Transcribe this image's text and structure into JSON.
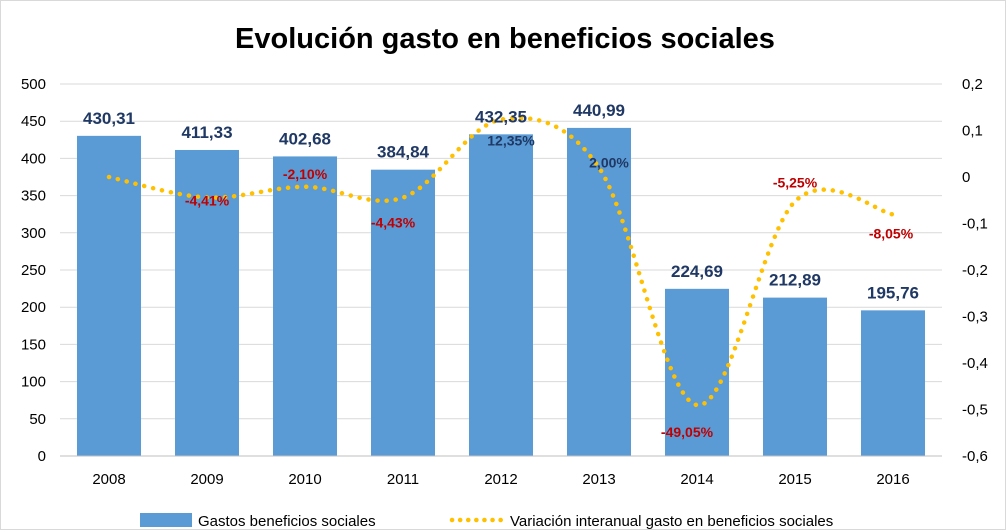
{
  "chart_data": {
    "type": "bar",
    "title": "Evolución gasto en beneficios sociales",
    "categories": [
      "2008",
      "2009",
      "2010",
      "2011",
      "2012",
      "2013",
      "2014",
      "2015",
      "2016"
    ],
    "series": [
      {
        "name": "Gastos beneficios sociales",
        "type": "bar",
        "axis": "left",
        "color": "#5b9bd5",
        "values": [
          430.31,
          411.33,
          402.68,
          384.84,
          432.35,
          440.99,
          224.69,
          212.89,
          195.76
        ],
        "labels": [
          "430,31",
          "411,33",
          "402,68",
          "384,84",
          "432,35",
          "440,99",
          "224,69",
          "212,89",
          "195,76"
        ]
      },
      {
        "name": "Variación interanual gasto en beneficios sociales",
        "type": "line",
        "style": "dotted",
        "axis": "right",
        "color": "#ffc000",
        "values": [
          0,
          -0.0441,
          -0.021,
          -0.0443,
          0.1235,
          0.02,
          -0.4905,
          -0.0525,
          -0.0805
        ],
        "labels": [
          "",
          "-4,41%",
          "-2,10%",
          "-4,43%",
          "12,35%",
          "2,00%",
          "-49,05%",
          "-5,25%",
          "-8,05%"
        ],
        "label_colors": [
          "",
          "#c00000",
          "#c00000",
          "#c00000",
          "#1f3864",
          "#1f3864",
          "#c00000",
          "#c00000",
          "#c00000"
        ]
      }
    ],
    "y_left": {
      "ylim": [
        0,
        500
      ],
      "ticks": [
        "0",
        "50",
        "100",
        "150",
        "200",
        "250",
        "300",
        "350",
        "400",
        "450",
        "500"
      ]
    },
    "y_right": {
      "ylim": [
        -0.6,
        0.2
      ],
      "ticks": [
        "-0,6",
        "-0,5",
        "-0,4",
        "-0,3",
        "-0,2",
        "-0,1",
        "0",
        "0,1",
        "0,2"
      ]
    },
    "grid": true,
    "legend": "bottom"
  }
}
